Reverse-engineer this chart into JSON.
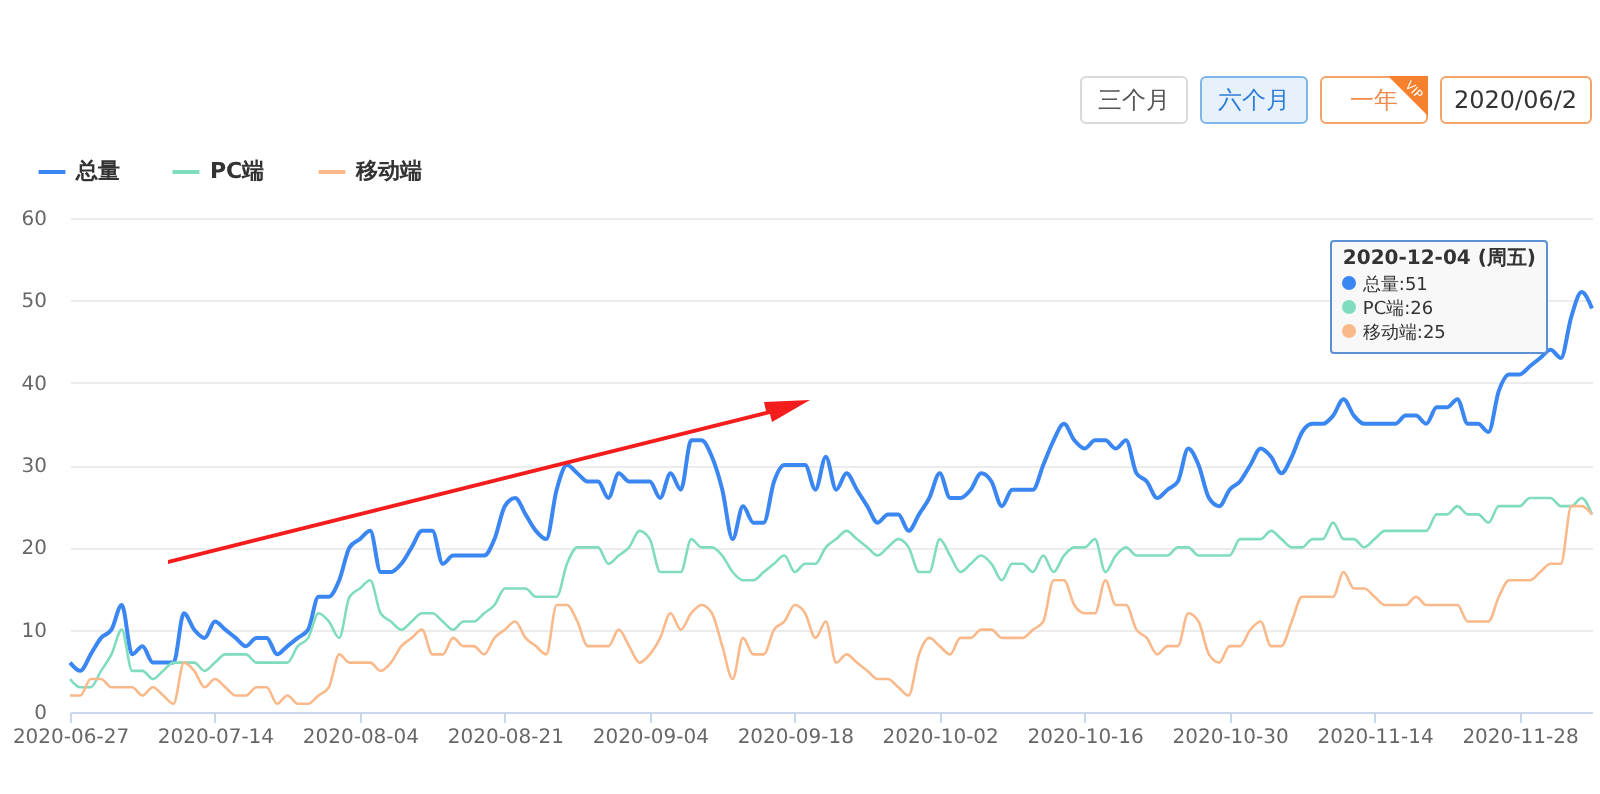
{
  "chart_data": {
    "type": "line",
    "categories": [
      "2020-06-27",
      null,
      null,
      null,
      null,
      null,
      null,
      null,
      null,
      null,
      null,
      null,
      null,
      null,
      "2020-07-14",
      null,
      null,
      null,
      null,
      null,
      null,
      null,
      null,
      null,
      null,
      null,
      null,
      null,
      "2020-08-04",
      null,
      null,
      null,
      null,
      null,
      null,
      null,
      null,
      null,
      null,
      null,
      null,
      null,
      "2020-08-21",
      null,
      null,
      null,
      null,
      null,
      null,
      null,
      null,
      null,
      null,
      null,
      null,
      null,
      "2020-09-04",
      null,
      null,
      null,
      null,
      null,
      null,
      null,
      null,
      null,
      null,
      null,
      null,
      null,
      "2020-09-18",
      null,
      null,
      null,
      null,
      null,
      null,
      null,
      null,
      null,
      null,
      null,
      null,
      null,
      "2020-10-02",
      null,
      null,
      null,
      null,
      null,
      null,
      null,
      null,
      null,
      null,
      null,
      null,
      null,
      "2020-10-16",
      null,
      null,
      null,
      null,
      null,
      null,
      null,
      null,
      null,
      null,
      null,
      null,
      null,
      "2020-10-30",
      null,
      null,
      null,
      null,
      null,
      null,
      null,
      null,
      null,
      null,
      null,
      null,
      null,
      "2020-11-14",
      null,
      null,
      null,
      null,
      null,
      null,
      null,
      null,
      null,
      null,
      null,
      null,
      null,
      "2020-11-28",
      null,
      null,
      null,
      null,
      null,
      null,
      null
    ],
    "series": [
      {
        "name": "总量",
        "color": "#3a86f2",
        "values": [
          6,
          5,
          7,
          9,
          10,
          13,
          7,
          8,
          6,
          6,
          6,
          12,
          10,
          9,
          11,
          10,
          9,
          8,
          9,
          9,
          7,
          8,
          9,
          10,
          14,
          14,
          16,
          20,
          21,
          22,
          17,
          17,
          18,
          20,
          22,
          22,
          18,
          19,
          19,
          19,
          19,
          21,
          25,
          26,
          24,
          22,
          21,
          27,
          30,
          29,
          28,
          28,
          26,
          29,
          28,
          28,
          28,
          26,
          29,
          27,
          33,
          33,
          31,
          27,
          21,
          25,
          23,
          23,
          28,
          30,
          30,
          30,
          27,
          31,
          27,
          29,
          27,
          25,
          23,
          24,
          24,
          22,
          24,
          26,
          29,
          26,
          26,
          27,
          29,
          28,
          25,
          27,
          27,
          27,
          30,
          33,
          35,
          33,
          32,
          33,
          33,
          32,
          33,
          29,
          28,
          26,
          27,
          28,
          32,
          30,
          26,
          25,
          27,
          28,
          30,
          32,
          31,
          29,
          31,
          34,
          35,
          35,
          36,
          38,
          36,
          35,
          35,
          35,
          35,
          36,
          36,
          35,
          37,
          37,
          38,
          35,
          35,
          34,
          39,
          41,
          41,
          42,
          43,
          44,
          43,
          48,
          51,
          49
        ]
      },
      {
        "name": "PC端",
        "color": "#7fdcbf",
        "values": [
          4,
          3,
          3,
          5,
          7,
          10,
          5,
          5,
          4,
          5,
          6,
          6,
          6,
          5,
          6,
          7,
          7,
          7,
          6,
          6,
          6,
          6,
          8,
          9,
          12,
          11,
          9,
          14,
          15,
          16,
          12,
          11,
          10,
          11,
          12,
          12,
          11,
          10,
          11,
          11,
          12,
          13,
          15,
          15,
          15,
          14,
          14,
          14,
          18,
          20,
          20,
          20,
          18,
          19,
          20,
          22,
          21,
          17,
          17,
          17,
          21,
          20,
          20,
          19,
          17,
          16,
          16,
          17,
          18,
          19,
          17,
          18,
          18,
          20,
          21,
          22,
          21,
          20,
          19,
          20,
          21,
          20,
          17,
          17,
          21,
          19,
          17,
          18,
          19,
          18,
          16,
          18,
          18,
          17,
          19,
          17,
          19,
          20,
          20,
          21,
          17,
          19,
          20,
          19,
          19,
          19,
          19,
          20,
          20,
          19,
          19,
          19,
          19,
          21,
          21,
          21,
          22,
          21,
          20,
          20,
          21,
          21,
          23,
          21,
          21,
          20,
          21,
          22,
          22,
          22,
          22,
          22,
          24,
          24,
          25,
          24,
          24,
          23,
          25,
          25,
          25,
          26,
          26,
          26,
          25,
          25,
          26,
          24
        ]
      },
      {
        "name": "移动端",
        "color": "#f9b98a",
        "values": [
          2,
          2,
          4,
          4,
          3,
          3,
          3,
          2,
          3,
          2,
          1,
          6,
          5,
          3,
          4,
          3,
          2,
          2,
          3,
          3,
          1,
          2,
          1,
          1,
          2,
          3,
          7,
          6,
          6,
          6,
          5,
          6,
          8,
          9,
          10,
          7,
          7,
          9,
          8,
          8,
          7,
          9,
          10,
          11,
          9,
          8,
          7,
          13,
          13,
          11,
          8,
          8,
          8,
          10,
          8,
          6,
          7,
          9,
          12,
          10,
          12,
          13,
          12,
          8,
          4,
          9,
          7,
          7,
          10,
          11,
          13,
          12,
          9,
          11,
          6,
          7,
          6,
          5,
          4,
          4,
          3,
          2,
          7,
          9,
          8,
          7,
          9,
          9,
          10,
          10,
          9,
          9,
          9,
          10,
          11,
          16,
          16,
          13,
          12,
          12,
          16,
          13,
          13,
          10,
          9,
          7,
          8,
          8,
          12,
          11,
          7,
          6,
          8,
          8,
          10,
          11,
          8,
          8,
          11,
          14,
          14,
          14,
          14,
          17,
          15,
          15,
          14,
          13,
          13,
          13,
          14,
          13,
          13,
          13,
          13,
          11,
          11,
          11,
          14,
          16,
          16,
          16,
          17,
          18,
          18,
          25,
          25,
          24
        ]
      }
    ],
    "ylim": [
      0,
      60
    ],
    "yticks": [
      0,
      10,
      20,
      30,
      40,
      50,
      60
    ],
    "grid": "y",
    "legend": "top left",
    "annotations": [
      "2020-12-04 (周五)",
      "总量:51",
      "PC端:26",
      "移动端:25",
      "三个月",
      "六个月",
      "一年",
      "VIP",
      "2020/06/2"
    ]
  }
}
